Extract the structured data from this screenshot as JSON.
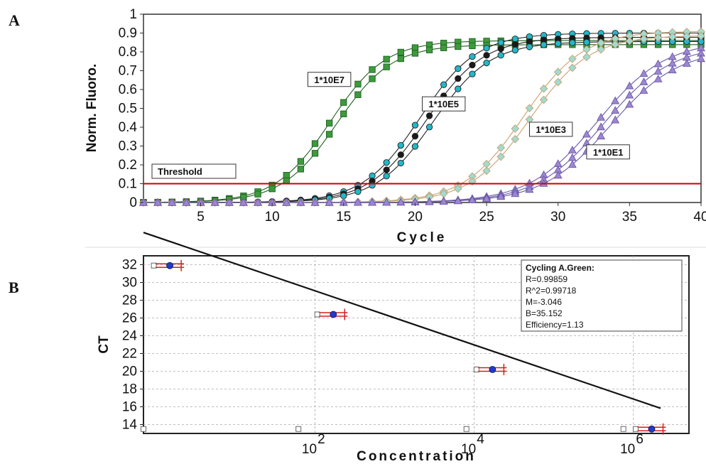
{
  "panel_letters": [
    "A",
    "B"
  ],
  "chart_data": [
    {
      "type": "line",
      "panel": "A",
      "xlabel": "Cycle",
      "ylabel": "Norm. Fluoro.",
      "xlim": [
        1,
        40
      ],
      "ylim": [
        0,
        1
      ],
      "x_ticks": [
        "5",
        "10",
        "15",
        "20",
        "25",
        "30",
        "35",
        "40"
      ],
      "y_ticks": [
        "0",
        "0.1",
        "0.2",
        "0.3",
        "0.4",
        "0.5",
        "0.6",
        "0.7",
        "0.8",
        "0.9",
        "1"
      ],
      "grid": false,
      "threshold": {
        "label": "Threshold",
        "value": 0.1,
        "color": "#cc0000"
      },
      "series": [
        {
          "name": "1*10E7",
          "midpoint": 14.3,
          "slope": 0.52,
          "max": 0.86,
          "marker": "square",
          "fill": "#3d9a3d",
          "line": "#1f5f1f",
          "replicates": 2,
          "label_at": [
            14,
            0.65
          ]
        },
        {
          "name": "1*10E5",
          "midpoint": 20.8,
          "slope": 0.5,
          "max": 0.9,
          "marker": "circle",
          "fill": "#22b8c8",
          "line": "#222222",
          "alt_fill": "#1a1a1a",
          "replicates": 3,
          "label_at": [
            22,
            0.52
          ]
        },
        {
          "name": "1*10E3",
          "midpoint": 27.8,
          "slope": 0.48,
          "max": 0.91,
          "marker": "diamond",
          "fill": "#9fdcd2",
          "line": "#c8a070",
          "replicates": 2,
          "label_at": [
            29.5,
            0.385
          ]
        },
        {
          "name": "1*10E1",
          "midpoint": 33.2,
          "slope": 0.42,
          "max": 0.86,
          "marker": "triangle",
          "fill": "#9e86d0",
          "line": "#6a5aa8",
          "replicates": 3,
          "label_at": [
            33.5,
            0.265
          ]
        }
      ]
    },
    {
      "type": "scatter",
      "panel": "B",
      "xlabel": "Concentration",
      "ylabel": "CT",
      "x_scale": "log",
      "xlim": [
        0.7,
        5000000
      ],
      "ylim": [
        13,
        33
      ],
      "x_ticks": [
        100,
        10000,
        1000000
      ],
      "y_ticks": [
        "14",
        "16",
        "18",
        "20",
        "22",
        "24",
        "26",
        "28",
        "30",
        "32"
      ],
      "grid": true,
      "fit_line": {
        "slope": -3.046,
        "intercept": 35.152,
        "color": "#111111"
      },
      "points": [
        {
          "x": 1.5,
          "y": 31.9
        },
        {
          "x": 170,
          "y": 26.4
        },
        {
          "x": 17000,
          "y": 20.2
        },
        {
          "x": 1700000,
          "y": 13.5
        }
      ],
      "open_markers_on_axis": [
        0.7,
        62,
        8000,
        750000
      ],
      "stats_box": {
        "lines": [
          "Cycling A.Green:",
          "R=0.99859",
          "R^2=0.99718",
          "M=-3.046",
          "B=35.152",
          "Efficiency=1.13"
        ]
      }
    }
  ]
}
